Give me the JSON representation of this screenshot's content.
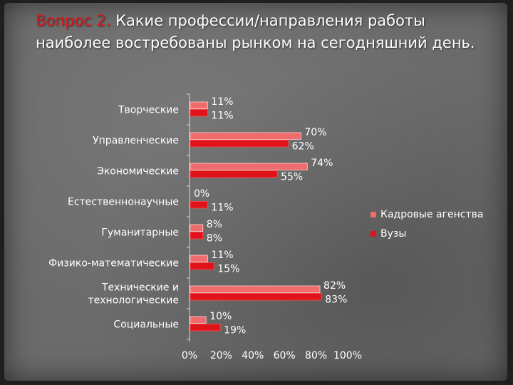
{
  "slide": {
    "question_label": "Вопрос 2.",
    "question_text": " Какие профессии/направления работы наиболее востребованы рынком на сегодняшний день."
  },
  "chart_data": {
    "type": "bar",
    "orientation": "horizontal",
    "categories": [
      "Творческие",
      "Управленческие",
      "Экономические",
      "Естественнонаучные",
      "Гуманитарные",
      "Физико-математические",
      "Технические и технологические",
      "Социальные"
    ],
    "category_lines": [
      [
        "Творческие"
      ],
      [
        "Управленческие"
      ],
      [
        "Экономические"
      ],
      [
        "Естественнонаучные"
      ],
      [
        "Гуманитарные"
      ],
      [
        "Физико-математические"
      ],
      [
        "Технические и",
        "технологические"
      ],
      [
        "Социальные"
      ]
    ],
    "series": [
      {
        "name": "Кадровые агенства",
        "color": "#f06b6b",
        "values": [
          11,
          70,
          74,
          0,
          8,
          11,
          82,
          10
        ],
        "labels": [
          "11%",
          "70%",
          "74%",
          "0%",
          "8%",
          "11%",
          "82%",
          "10%"
        ]
      },
      {
        "name": "Вузы",
        "color": "#e0131b",
        "values": [
          11,
          62,
          55,
          11,
          8,
          15,
          83,
          19
        ],
        "labels": [
          "11%",
          "62%",
          "55%",
          "11%",
          "8%",
          "15%",
          "83%",
          "19%"
        ]
      }
    ],
    "xlim": [
      0,
      100
    ],
    "xticks": [
      "0%",
      "20%",
      "40%",
      "60%",
      "80%",
      "100%"
    ],
    "legend_position": "right",
    "grid": false
  }
}
